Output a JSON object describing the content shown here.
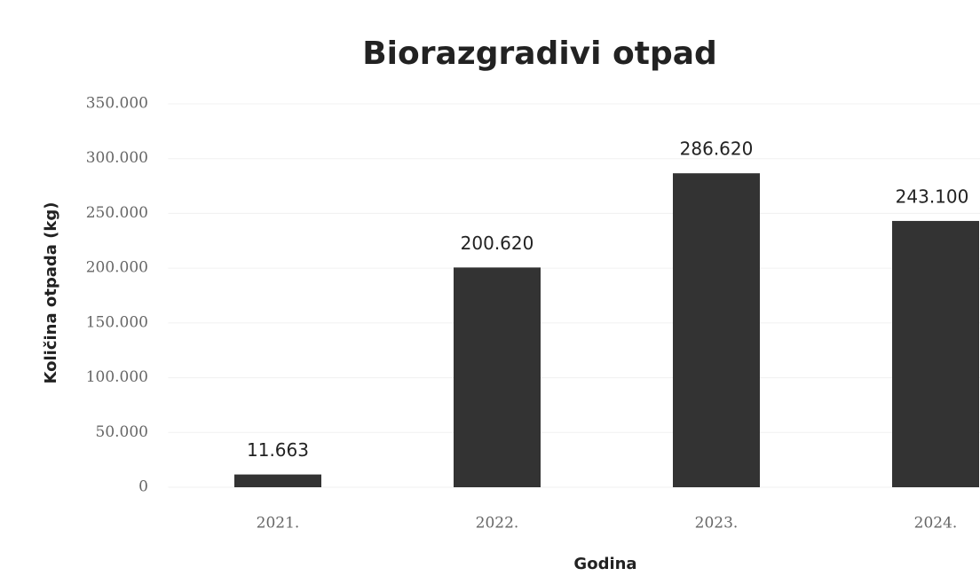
{
  "chart_data": {
    "type": "bar",
    "title": "Biorazgradivi otpad",
    "x_label": "Godina",
    "y_label": "Količina otpada (kg)",
    "categories": [
      "2021.",
      "2022.",
      "2023.",
      "2024."
    ],
    "values": [
      11663,
      200620,
      286620,
      243100
    ],
    "value_labels": [
      "11.663",
      "200.620",
      "286.620",
      "243.100"
    ],
    "color": "#333333",
    "ylim": [
      0,
      350000
    ],
    "yticks": [
      0,
      {
        "value": 50000,
        "label": "50.000"
      },
      {
        "value": 100000,
        "label": "100.000"
      },
      {
        "value": 150000,
        "label": "150.000"
      },
      {
        "value": 200000,
        "label": "200.000"
      },
      {
        "value": 250000,
        "label": "250.000"
      },
      {
        "value": 300000,
        "label": "300.000"
      },
      {
        "value": 350000,
        "label": "350.000"
      }
    ],
    "grid": true
  }
}
